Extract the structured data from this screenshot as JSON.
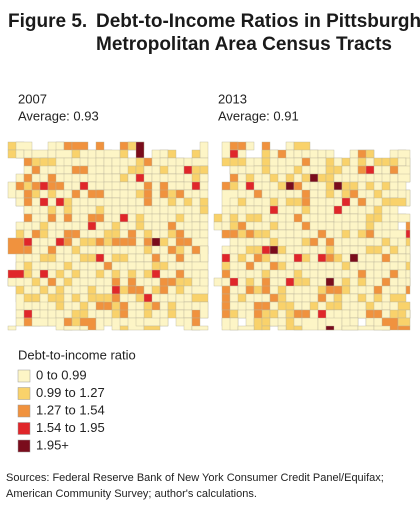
{
  "figure_label": "Figure 5.",
  "title_lines": [
    "Debt-to-Income Ratios in Pittsburgh",
    "Metropolitan Area Census Tracts"
  ],
  "maps": [
    {
      "year": "2007",
      "average": "Average: 0.93"
    },
    {
      "year": "2013",
      "average": "Average: 0.91"
    }
  ],
  "legend": {
    "title": "Debt-to-income ratio",
    "items": [
      {
        "label": "0 to 0.99",
        "color": "#fdf5c6"
      },
      {
        "label": "0.99 to 1.27",
        "color": "#f9d26b"
      },
      {
        "label": "1.27 to 1.54",
        "color": "#f0923e"
      },
      {
        "label": "1.54 to 1.95",
        "color": "#e0262a"
      },
      {
        "label": "1.95+",
        "color": "#7a0c1c"
      }
    ]
  },
  "source_lines": [
    "Sources: Federal Reserve Bank of New York Consumer Credit Panel/Equifax;",
    "American Community Survey; author's calculations."
  ]
}
